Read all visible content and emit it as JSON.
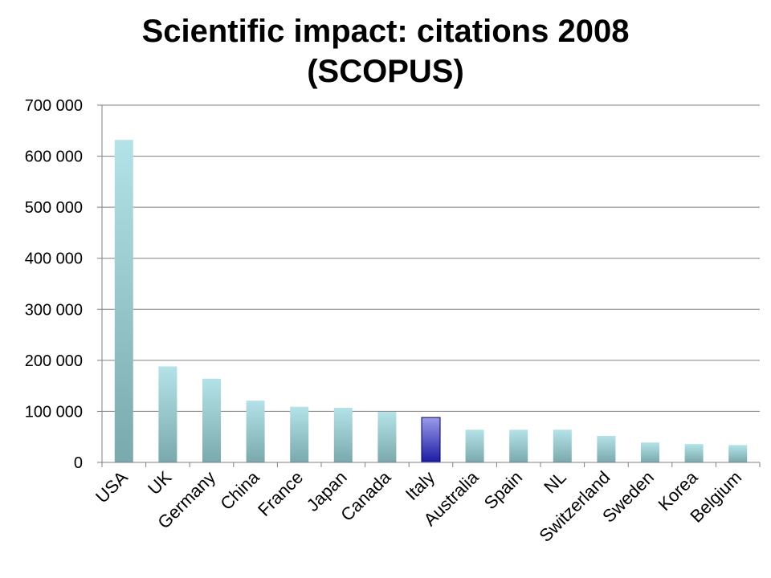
{
  "chart_data": {
    "type": "bar",
    "title_line1": "Scientific impact: citations 2008",
    "title_line2": "(SCOPUS)",
    "xlabel": "",
    "ylabel": "",
    "categories": [
      "USA",
      "UK",
      "Germany",
      "China",
      "France",
      "Japan",
      "Canada",
      "Italy",
      "Australia",
      "Spain",
      "NL",
      "Switzerland",
      "Sweden",
      "Korea",
      "Belgium"
    ],
    "values": [
      632000,
      188000,
      164000,
      121000,
      109000,
      107000,
      99000,
      88000,
      64000,
      64000,
      64000,
      52000,
      39000,
      36000,
      34000
    ],
    "highlight_index": 7,
    "ylim": [
      0,
      700000
    ],
    "yticks": [
      0,
      100000,
      200000,
      300000,
      400000,
      500000,
      600000,
      700000
    ],
    "ytick_labels": [
      "0",
      "100 000",
      "200 000",
      "300 000",
      "400 000",
      "500 000",
      "600 000",
      "700 000"
    ],
    "grid": true,
    "legend": "none",
    "colors": {
      "bar_top": "#b3e3e8",
      "bar_bottom": "#7aa9ad",
      "highlight_top": "#9b9bea",
      "highlight_bottom": "#1a1aa3",
      "highlight_border": "#000055",
      "grid": "#808080"
    }
  }
}
